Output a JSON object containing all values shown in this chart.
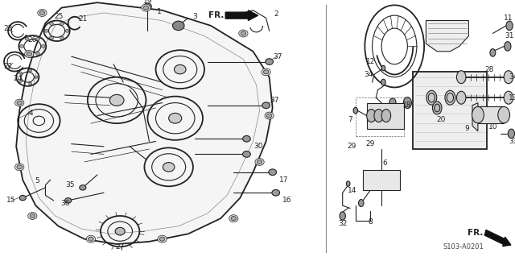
{
  "fig_width": 6.4,
  "fig_height": 3.19,
  "dpi": 100,
  "background_color": "#ffffff",
  "line_color": "#222222",
  "diagram_code": "S103-A0201",
  "label_fontsize": 6.5,
  "border_color": "#dddddd"
}
